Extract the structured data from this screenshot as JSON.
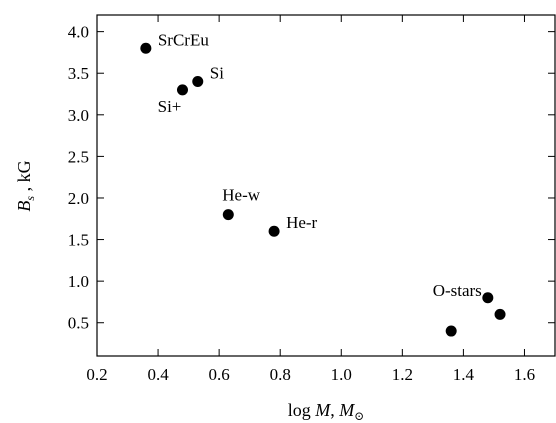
{
  "chart_data": {
    "type": "scatter",
    "title": "",
    "xlabel": "log M, M⊙",
    "xlabel_parts": {
      "prefix": "log ",
      "var": "M",
      "sep": ", ",
      "var2": "M",
      "sub": "⊙"
    },
    "ylabel": "Bs , kG",
    "ylabel_parts": {
      "var": "B",
      "sub": "s",
      "suffix": " , kG"
    },
    "xlim": [
      0.2,
      1.7
    ],
    "ylim": [
      0.1,
      4.2
    ],
    "xticks": [
      0.2,
      0.4,
      0.6,
      0.8,
      1.0,
      1.2,
      1.4,
      1.6
    ],
    "xtick_labels": [
      "0.2",
      "0.4",
      "0.6",
      "0.8",
      "1.0",
      "1.2",
      "1.4",
      "1.6"
    ],
    "yticks": [
      0.5,
      1.0,
      1.5,
      2.0,
      2.5,
      3.0,
      3.5,
      4.0
    ],
    "ytick_labels": [
      "0.5",
      "1.0",
      "1.5",
      "2.0",
      "2.5",
      "3.0",
      "3.5",
      "4.0"
    ],
    "grid": false,
    "points": [
      {
        "x": 0.36,
        "y": 3.8,
        "label": "SrCrEu",
        "label_pos": "right"
      },
      {
        "x": 0.53,
        "y": 3.4,
        "label": "Si",
        "label_pos": "right"
      },
      {
        "x": 0.48,
        "y": 3.3,
        "label": "Si+",
        "label_pos": "below-left"
      },
      {
        "x": 0.63,
        "y": 1.8,
        "label": "He-w",
        "label_pos": "above"
      },
      {
        "x": 0.78,
        "y": 1.6,
        "label": "He-r",
        "label_pos": "right"
      },
      {
        "x": 1.36,
        "y": 0.4,
        "label": "",
        "label_pos": ""
      },
      {
        "x": 1.48,
        "y": 0.8,
        "label": "O-stars",
        "label_pos": "left"
      },
      {
        "x": 1.52,
        "y": 0.6,
        "label": "",
        "label_pos": ""
      }
    ]
  }
}
